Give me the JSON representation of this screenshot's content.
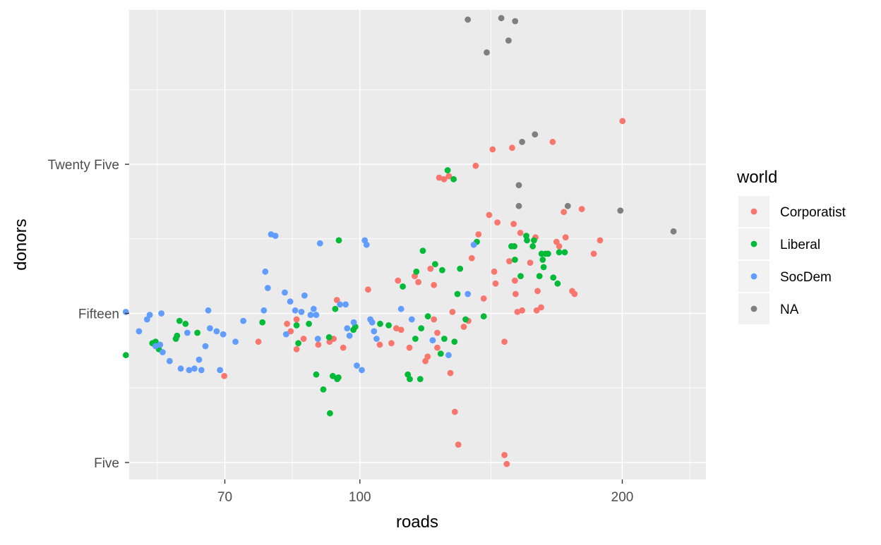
{
  "chart_data": {
    "type": "scatter",
    "title": "",
    "xlabel": "roads",
    "ylabel": "donors",
    "x_scale": "log10",
    "x_ticks": [
      70,
      100,
      200
    ],
    "x_tick_labels": [
      "70",
      "100",
      "200"
    ],
    "y_ticks": [
      5,
      15,
      25
    ],
    "y_tick_labels": [
      "Five",
      "Fifteen",
      "Twenty Five"
    ],
    "xlim": [
      53,
      250
    ],
    "ylim": [
      4,
      32
    ],
    "grid": true,
    "legend": {
      "title": "world",
      "position": "right",
      "entries": [
        "Corporatist",
        "Liberal",
        "SocDem",
        "NA"
      ]
    },
    "colors": {
      "Corporatist": "#F8766D",
      "Liberal": "#00BA38",
      "SocDem": "#619CFF",
      "NA": "#7F7F7F",
      "panel": "#EBEBEB",
      "grid": "#FFFFFF"
    },
    "series": [
      {
        "name": "Corporatist",
        "points": [
          [
            69.9,
            10.8
          ],
          [
            76.5,
            13.1
          ],
          [
            82.5,
            14.3
          ],
          [
            83.3,
            13.8
          ],
          [
            84.6,
            14.6
          ],
          [
            84.6,
            12.6
          ],
          [
            86.2,
            13.3
          ],
          [
            89.6,
            12.9
          ],
          [
            92.3,
            13.1
          ],
          [
            93.3,
            13.3
          ],
          [
            94.1,
            15.9
          ],
          [
            95.7,
            12.7
          ],
          [
            102.2,
            16.6
          ],
          [
            105.4,
            12.9
          ],
          [
            108.7,
            13.0
          ],
          [
            110.1,
            14.0
          ],
          [
            110.6,
            17.2
          ],
          [
            111.5,
            13.9
          ],
          [
            114.0,
            12.7
          ],
          [
            115.6,
            17.5
          ],
          [
            116.7,
            17.1
          ],
          [
            118.9,
            11.8
          ],
          [
            119.6,
            12.1
          ],
          [
            120.5,
            18.0
          ],
          [
            121.6,
            16.9
          ],
          [
            121.6,
            14.6
          ],
          [
            122.7,
            12.7
          ],
          [
            122.7,
            13.7
          ],
          [
            123.3,
            24.1
          ],
          [
            124.9,
            24.0
          ],
          [
            126.5,
            24.2
          ],
          [
            127.0,
            11.0
          ],
          [
            127.7,
            15.1
          ],
          [
            128.5,
            8.4
          ],
          [
            129.7,
            6.2
          ],
          [
            131.6,
            14.1
          ],
          [
            133.2,
            14.5
          ],
          [
            134.4,
            18.7
          ],
          [
            135.8,
            24.9
          ],
          [
            136.8,
            20.3
          ],
          [
            138.7,
            16.0
          ],
          [
            140.7,
            21.6
          ],
          [
            142.0,
            26.0
          ],
          [
            142.6,
            17.8
          ],
          [
            143.1,
            17.0
          ],
          [
            143.8,
            21.1
          ],
          [
            146.5,
            13.1
          ],
          [
            146.5,
            5.5
          ],
          [
            147.4,
            4.9
          ],
          [
            148.4,
            18.5
          ],
          [
            149.5,
            26.1
          ],
          [
            150.1,
            21.0
          ],
          [
            150.6,
            17.2
          ],
          [
            150.9,
            16.3
          ],
          [
            151.6,
            15.1
          ],
          [
            152.8,
            20.4
          ],
          [
            153.5,
            15.2
          ],
          [
            156.8,
            18.4
          ],
          [
            159.0,
            20.1
          ],
          [
            159.5,
            15.2
          ],
          [
            159.9,
            16.5
          ],
          [
            161.4,
            15.4
          ],
          [
            166.4,
            26.5
          ],
          [
            168.1,
            19.8
          ],
          [
            169.3,
            19.5
          ],
          [
            171.4,
            21.8
          ],
          [
            172.2,
            20.1
          ],
          [
            175.2,
            16.5
          ],
          [
            176.3,
            16.3
          ],
          [
            179.7,
            22.0
          ],
          [
            185.5,
            19.0
          ],
          [
            188.6,
            19.9
          ],
          [
            200.1,
            27.9
          ]
        ]
      },
      {
        "name": "Liberal",
        "points": [
          [
            53.9,
            12.2
          ],
          [
            57.8,
            13.0
          ],
          [
            58.3,
            13.1
          ],
          [
            58.8,
            12.6
          ],
          [
            61.5,
            13.3
          ],
          [
            61.7,
            13.5
          ],
          [
            62.1,
            14.5
          ],
          [
            63.1,
            14.3
          ],
          [
            65.1,
            13.7
          ],
          [
            77.3,
            14.4
          ],
          [
            84.6,
            14.2
          ],
          [
            85.0,
            13.0
          ],
          [
            87.4,
            14.3
          ],
          [
            89.1,
            10.9
          ],
          [
            90.8,
            9.9
          ],
          [
            92.2,
            13.4
          ],
          [
            92.4,
            8.3
          ],
          [
            93.1,
            10.8
          ],
          [
            93.7,
            15.3
          ],
          [
            94.2,
            10.6
          ],
          [
            94.5,
            10.7
          ],
          [
            94.6,
            19.9
          ],
          [
            98.3,
            13.9
          ],
          [
            98.8,
            14.1
          ],
          [
            105.5,
            14.3
          ],
          [
            107.9,
            14.2
          ],
          [
            112.0,
            16.8
          ],
          [
            113.5,
            10.9
          ],
          [
            114.1,
            10.6
          ],
          [
            115.8,
            13.3
          ],
          [
            116.1,
            17.8
          ],
          [
            117.3,
            10.6
          ],
          [
            117.6,
            14.0
          ],
          [
            118.1,
            19.2
          ],
          [
            119.7,
            14.8
          ],
          [
            122.0,
            18.3
          ],
          [
            123.8,
            12.3
          ],
          [
            124.3,
            17.9
          ],
          [
            125.0,
            13.3
          ],
          [
            126.1,
            24.6
          ],
          [
            128.1,
            24.0
          ],
          [
            128.4,
            13.1
          ],
          [
            129.4,
            16.3
          ],
          [
            130.3,
            18.0
          ],
          [
            132.2,
            14.6
          ],
          [
            136.2,
            19.8
          ],
          [
            138.7,
            14.8
          ],
          [
            149.2,
            19.5
          ],
          [
            150.4,
            19.5
          ],
          [
            150.6,
            18.6
          ],
          [
            152.9,
            17.5
          ],
          [
            155.2,
            20.2
          ],
          [
            155.5,
            19.9
          ],
          [
            157.9,
            19.5
          ],
          [
            158.4,
            19.9
          ],
          [
            160.7,
            17.5
          ],
          [
            161.6,
            19.0
          ],
          [
            162.1,
            18.6
          ],
          [
            162.5,
            18.1
          ],
          [
            163.3,
            19.0
          ],
          [
            164.4,
            19.0
          ],
          [
            166.7,
            17.4
          ],
          [
            168.6,
            17.0
          ],
          [
            169.3,
            19.1
          ],
          [
            171.8,
            19.1
          ]
        ]
      },
      {
        "name": "SocDem",
        "points": [
          [
            53.9,
            15.1
          ],
          [
            55.8,
            13.8
          ],
          [
            57.0,
            14.6
          ],
          [
            57.4,
            14.9
          ],
          [
            58.3,
            12.8
          ],
          [
            59.0,
            12.9
          ],
          [
            59.2,
            15.0
          ],
          [
            59.4,
            12.4
          ],
          [
            60.5,
            11.8
          ],
          [
            62.3,
            11.3
          ],
          [
            63.4,
            13.7
          ],
          [
            63.7,
            11.2
          ],
          [
            64.6,
            11.3
          ],
          [
            65.4,
            11.9
          ],
          [
            65.8,
            11.2
          ],
          [
            66.5,
            12.8
          ],
          [
            67.0,
            15.2
          ],
          [
            67.3,
            14.0
          ],
          [
            68.5,
            13.8
          ],
          [
            69.1,
            11.2
          ],
          [
            69.7,
            13.6
          ],
          [
            72.0,
            13.1
          ],
          [
            73.5,
            14.5
          ],
          [
            77.6,
            15.2
          ],
          [
            77.9,
            17.8
          ],
          [
            78.4,
            16.7
          ],
          [
            79.1,
            20.3
          ],
          [
            80.0,
            20.2
          ],
          [
            82.0,
            16.4
          ],
          [
            82.3,
            13.6
          ],
          [
            83.2,
            15.8
          ],
          [
            84.3,
            15.2
          ],
          [
            85.7,
            15.1
          ],
          [
            86.4,
            16.2
          ],
          [
            87.8,
            14.9
          ],
          [
            88.5,
            15.3
          ],
          [
            89.1,
            14.9
          ],
          [
            89.5,
            13.3
          ],
          [
            90.0,
            19.7
          ],
          [
            94.9,
            15.6
          ],
          [
            96.3,
            15.6
          ],
          [
            96.7,
            14.0
          ],
          [
            97.3,
            13.5
          ],
          [
            98.4,
            14.4
          ],
          [
            99.2,
            11.5
          ],
          [
            100.5,
            11.2
          ],
          [
            101.3,
            19.9
          ],
          [
            101.8,
            19.6
          ],
          [
            102.8,
            14.6
          ],
          [
            103.3,
            14.4
          ],
          [
            103.8,
            13.8
          ],
          [
            104.5,
            13.3
          ],
          [
            111.5,
            15.3
          ],
          [
            114.7,
            14.6
          ],
          [
            121.2,
            13.2
          ],
          [
            126.4,
            12.2
          ],
          [
            133.0,
            16.3
          ],
          [
            135.1,
            19.6
          ]
        ]
      },
      {
        "name": "NA",
        "points": [
          [
            133.0,
            34.7
          ],
          [
            139.8,
            32.5
          ],
          [
            145.3,
            34.8
          ],
          [
            148.1,
            33.3
          ],
          [
            150.7,
            34.6
          ],
          [
            153.5,
            26.5
          ],
          [
            152.2,
            23.6
          ],
          [
            152.2,
            22.2
          ],
          [
            158.8,
            27.0
          ],
          [
            173.2,
            22.2
          ],
          [
            199.0,
            21.9
          ],
          [
            229.0,
            20.5
          ]
        ]
      }
    ]
  }
}
